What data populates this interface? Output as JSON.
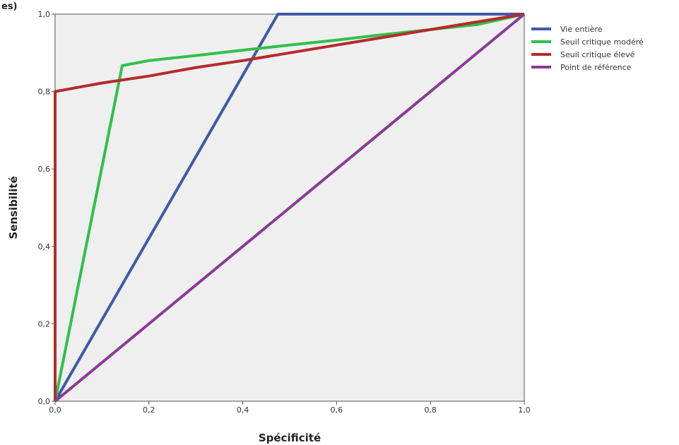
{
  "corner_label": "es)",
  "chart_data": {
    "type": "line",
    "xlabel": "Spécificité",
    "ylabel": "Sensibilité",
    "xlim": [
      0,
      1
    ],
    "ylim": [
      0,
      1
    ],
    "x_ticks": [
      "0,0",
      "0,2",
      "0,4",
      "0,6",
      "0,8",
      "1,0"
    ],
    "y_ticks": [
      "0,0",
      "0,2",
      "0,4",
      "0,6",
      "0,8",
      "1,0"
    ],
    "grid": false,
    "legend_position": "right",
    "background": "#efefef",
    "series": [
      {
        "name": "Vie entière",
        "color": "#3c5aa8",
        "points": [
          [
            0,
            0
          ],
          [
            0.475,
            1.0
          ],
          [
            1.0,
            1.0
          ]
        ]
      },
      {
        "name": "Seuil critique modéré",
        "color": "#2fc14a",
        "points": [
          [
            0,
            0
          ],
          [
            0.143,
            0.867
          ],
          [
            0.2,
            0.88
          ],
          [
            0.3,
            0.893
          ],
          [
            0.4,
            0.907
          ],
          [
            0.5,
            0.92
          ],
          [
            0.6,
            0.933
          ],
          [
            0.7,
            0.947
          ],
          [
            0.8,
            0.96
          ],
          [
            0.9,
            0.973
          ],
          [
            1.0,
            1.0
          ]
        ]
      },
      {
        "name": "Seuil critique élevé",
        "color": "#b52b2b",
        "points": [
          [
            0,
            0
          ],
          [
            0,
            0.8
          ],
          [
            0.1,
            0.822
          ],
          [
            0.2,
            0.84
          ],
          [
            0.3,
            0.862
          ],
          [
            0.4,
            0.88
          ],
          [
            0.5,
            0.9
          ],
          [
            0.6,
            0.92
          ],
          [
            0.7,
            0.94
          ],
          [
            0.8,
            0.96
          ],
          [
            0.9,
            0.98
          ],
          [
            1.0,
            1.0
          ]
        ]
      },
      {
        "name": "Point de référence",
        "color": "#8a3a96",
        "points": [
          [
            0,
            0
          ],
          [
            1,
            1
          ]
        ]
      }
    ]
  }
}
